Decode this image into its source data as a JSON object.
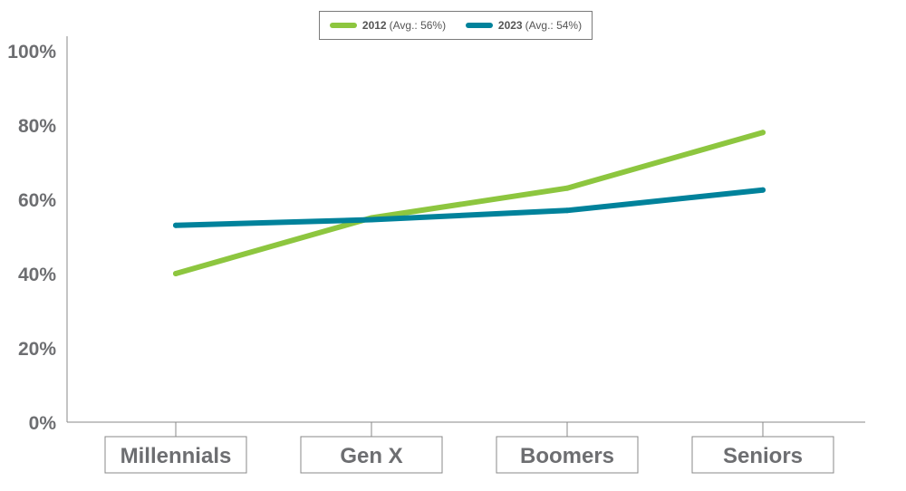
{
  "chart_data": {
    "type": "line",
    "categories": [
      "Millennials",
      "Gen X",
      "Boomers",
      "Seniors"
    ],
    "series": [
      {
        "name": "2012",
        "avg_label": "(Avg.: 56%)",
        "color": "#8dc63f",
        "values": [
          40,
          55,
          63,
          78
        ]
      },
      {
        "name": "2023",
        "avg_label": "(Avg.: 54%)",
        "color": "#00829b",
        "values": [
          53,
          54.5,
          57,
          62.5
        ]
      }
    ],
    "ylim": [
      0,
      100
    ],
    "yticks": [
      "0%",
      "20%",
      "40%",
      "60%",
      "80%",
      "100%"
    ],
    "yticks_values": [
      0,
      20,
      40,
      60,
      80,
      100
    ],
    "legend_position": "top-center",
    "grid": false
  }
}
